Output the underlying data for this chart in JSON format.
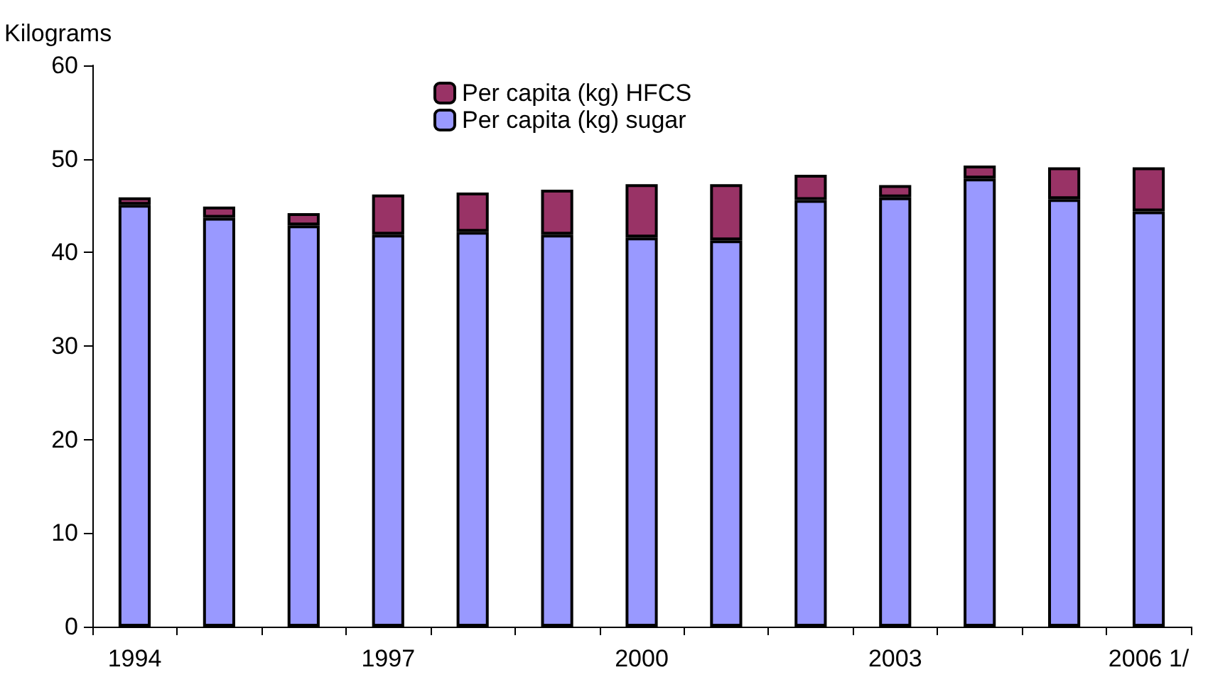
{
  "chart_data": {
    "type": "bar",
    "ylabel": "Kilograms",
    "categories": [
      "1994",
      null,
      null,
      "1997",
      null,
      null,
      "2000",
      null,
      null,
      "2003",
      null,
      null,
      "2006 1/"
    ],
    "stacked": true,
    "series": [
      {
        "name": "Per capita (kg) sugar",
        "color": "#9999ff",
        "values": [
          45.1,
          43.7,
          42.9,
          41.9,
          42.2,
          41.9,
          41.6,
          41.3,
          45.6,
          45.9,
          47.9,
          45.7,
          44.4
        ]
      },
      {
        "name": "Per capita (kg) HFCS",
        "color": "#993366",
        "values": [
          0.8,
          1.2,
          1.3,
          4.3,
          4.2,
          4.8,
          5.7,
          6.0,
          2.7,
          1.3,
          1.4,
          3.4,
          4.7
        ]
      }
    ],
    "ylim": [
      0,
      60
    ],
    "yticks": [
      0,
      10,
      20,
      30,
      40,
      50,
      60
    ],
    "grid": false,
    "legend": "top"
  }
}
